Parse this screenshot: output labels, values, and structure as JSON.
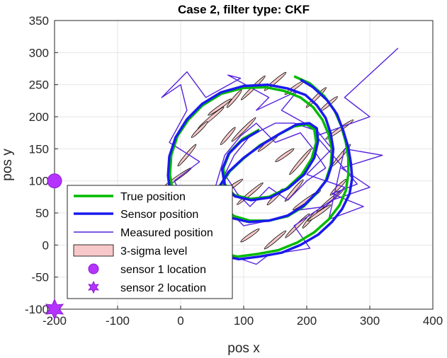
{
  "chart_data": {
    "type": "line",
    "title": "Case 2, filter type: CKF",
    "xlabel": "pos x",
    "ylabel": "pos y",
    "xlim": [
      -200,
      400
    ],
    "ylim": [
      -100,
      350
    ],
    "xticks": [
      "-200",
      "-100",
      "0",
      "100",
      "200",
      "300",
      "400"
    ],
    "yticks": [
      "-100",
      "-50",
      "0",
      "50",
      "100",
      "150",
      "200",
      "250",
      "300",
      "350"
    ],
    "grid": true,
    "legend_position": "lower-left",
    "legend": [
      {
        "label": "True position",
        "color": "#00bb00"
      },
      {
        "label": "Sensor position",
        "color": "#1a1aee"
      },
      {
        "label": "Measured position",
        "color": "#5522dd"
      },
      {
        "label": "3-sigma level",
        "color": "#f7c8c8"
      },
      {
        "label": "sensor 1 location",
        "color": "#b433ff"
      },
      {
        "label": "sensor 2 location",
        "color": "#b433ff"
      }
    ],
    "series": [
      {
        "name": "True position",
        "color": "#00bb00",
        "x": [
          180,
          205,
          228,
          244,
          255,
          262,
          266,
          266,
          262,
          252,
          235,
          212,
          185,
          155,
          122,
          90,
          62,
          38,
          18,
          2,
          -12,
          -17,
          -15,
          -5,
          12,
          35,
          65,
          100,
          135,
          165,
          190,
          210,
          225,
          235,
          240,
          238,
          230,
          215,
          195,
          170,
          140,
          110,
          85,
          68,
          62,
          65,
          78,
          100,
          125,
          155,
          180,
          200,
          212,
          215,
          208,
          192,
          168,
          140,
          110,
          85,
          70,
          68,
          78,
          98,
          125
        ],
        "y": [
          263,
          252,
          232,
          210,
          185,
          160,
          135,
          110,
          85,
          62,
          40,
          20,
          4,
          -8,
          -14,
          -18,
          -12,
          0,
          20,
          50,
          80,
          110,
          140,
          170,
          195,
          218,
          236,
          245,
          246,
          240,
          230,
          215,
          195,
          172,
          148,
          124,
          100,
          80,
          60,
          45,
          38,
          38,
          45,
          58,
          75,
          95,
          115,
          135,
          155,
          172,
          185,
          188,
          180,
          160,
          135,
          110,
          88,
          75,
          72,
          78,
          95,
          120,
          145,
          165,
          180
        ]
      },
      {
        "name": "Sensor position",
        "color": "#1a1aee",
        "x": [
          190,
          210,
          232,
          248,
          258,
          266,
          270,
          272,
          268,
          256,
          240,
          218,
          190,
          160,
          125,
          92,
          62,
          36,
          14,
          -4,
          -16,
          -20,
          -18,
          -8,
          10,
          34,
          64,
          100,
          138,
          170,
          198,
          216,
          230,
          238,
          242,
          240,
          232,
          216,
          196,
          170,
          140,
          108,
          82,
          64,
          58,
          62,
          76,
          100,
          128,
          158,
          184,
          204,
          216,
          218,
          212,
          196,
          170,
          142,
          112,
          86,
          70,
          66,
          76,
          96,
          124
        ],
        "y": [
          258,
          246,
          226,
          204,
          178,
          152,
          128,
          104,
          80,
          56,
          36,
          16,
          0,
          -12,
          -18,
          -22,
          -16,
          -4,
          16,
          46,
          78,
          108,
          138,
          168,
          196,
          220,
          238,
          248,
          250,
          244,
          234,
          218,
          198,
          174,
          150,
          126,
          102,
          82,
          62,
          46,
          38,
          36,
          42,
          56,
          72,
          92,
          114,
          136,
          156,
          174,
          188,
          190,
          182,
          162,
          136,
          110,
          88,
          74,
          70,
          76,
          92,
          118,
          142,
          162,
          178
        ]
      },
      {
        "name": "Measured position",
        "color": "#5522dd",
        "x": [
          345,
          260,
          300,
          215,
          250,
          280,
          240,
          290,
          235,
          260,
          320,
          255,
          300,
          240,
          180,
          205,
          140,
          120,
          60,
          80,
          20,
          -10,
          30,
          -18,
          10,
          0,
          -30,
          10,
          40,
          95,
          75,
          140,
          120,
          185,
          160,
          215,
          240,
          200,
          260,
          230,
          190,
          150,
          100,
          80,
          55,
          70,
          95,
          120,
          150,
          190,
          210,
          230,
          200,
          170,
          140,
          110,
          90,
          70,
          85,
          110,
          150,
          180,
          210
        ],
        "y": [
          307,
          230,
          200,
          170,
          130,
          95,
          80,
          60,
          40,
          150,
          140,
          120,
          90,
          70,
          30,
          -5,
          -15,
          -30,
          -10,
          20,
          40,
          100,
          130,
          160,
          210,
          250,
          230,
          270,
          230,
          260,
          265,
          230,
          210,
          240,
          210,
          180,
          150,
          110,
          90,
          60,
          55,
          40,
          30,
          50,
          90,
          140,
          170,
          190,
          160,
          175,
          150,
          120,
          100,
          70,
          90,
          60,
          80,
          110,
          140,
          170,
          190,
          190,
          180
        ]
      }
    ],
    "ellipses": {
      "name": "3-sigma level",
      "x": [
        180,
        150,
        115,
        85,
        62,
        48,
        30,
        10,
        -5,
        -10,
        20,
        62,
        110,
        150,
        185,
        205,
        220,
        238,
        250,
        255,
        252,
        235,
        215,
        190,
        165,
        140,
        100,
        75,
        80,
        110,
        150,
        180,
        200
      ],
      "y": [
        245,
        255,
        245,
        228,
        215,
        198,
        180,
        140,
        105,
        80,
        45,
        25,
        15,
        8,
        30,
        40,
        50,
        70,
        90,
        140,
        180,
        220,
        230,
        130,
        140,
        160,
        180,
        170,
        90,
        80,
        75,
        85,
        70
      ]
    },
    "markers": [
      {
        "name": "sensor 1 location",
        "symbol": "circle",
        "x": -200,
        "y": 100,
        "color": "#b433ff"
      },
      {
        "name": "sensor 2 location",
        "symbol": "hexagram",
        "x": -200,
        "y": -100,
        "color": "#b433ff"
      }
    ]
  }
}
